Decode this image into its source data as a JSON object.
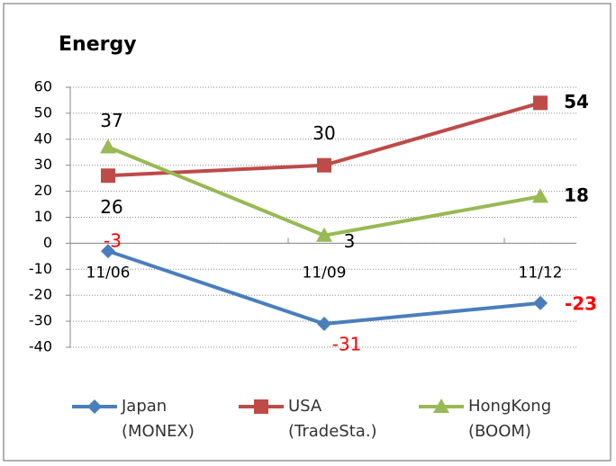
{
  "chart_data": {
    "type": "line",
    "title": "Energy",
    "categories": [
      "11/06",
      "11/09",
      "11/12"
    ],
    "series": [
      {
        "name": "Japan\n(MONEX)",
        "color": "#4a7ebb",
        "marker": "diamond",
        "label_color": "#ff0000",
        "values": [
          -3,
          -31,
          -23
        ]
      },
      {
        "name": "USA\n(TradeSta.)",
        "color": "#be4b48",
        "marker": "square",
        "label_color": "#000000",
        "values": [
          26,
          30,
          54
        ]
      },
      {
        "name": "HongKong\n(BOOM)",
        "color": "#98b954",
        "marker": "triangle",
        "label_color": "#000000",
        "values": [
          37,
          3,
          18
        ]
      }
    ],
    "ylim": [
      -40,
      60
    ],
    "yticks": [
      -40,
      -30,
      -20,
      -10,
      0,
      10,
      20,
      30,
      40,
      50,
      60
    ],
    "grid": true,
    "legend": "bottom"
  }
}
